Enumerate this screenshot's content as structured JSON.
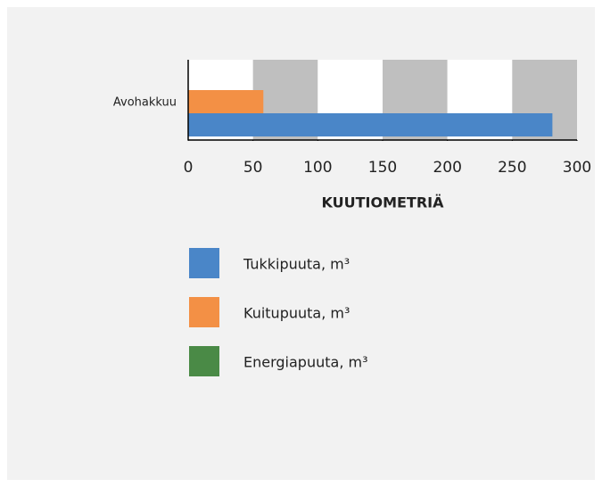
{
  "chart_data": {
    "type": "bar",
    "orientation": "horizontal",
    "categories": [
      "Avohakkuu"
    ],
    "series": [
      {
        "name": "Tukkipuuta, m³",
        "color": "#4a86c8",
        "values": [
          281
        ]
      },
      {
        "name": "Kuitupuuta, m³",
        "color": "#f39045",
        "values": [
          58
        ]
      },
      {
        "name": "Energiapuuta, m³",
        "color": "#4a8a46",
        "values": [
          0
        ]
      }
    ],
    "xlabel": "KUUTIOMETRIÄ",
    "xlim": [
      0,
      300
    ],
    "xticks": [
      0,
      50,
      100,
      150,
      200,
      250,
      300
    ],
    "band_colors": [
      "#ffffff",
      "#bfbfbf"
    ],
    "legend": "bottom"
  }
}
